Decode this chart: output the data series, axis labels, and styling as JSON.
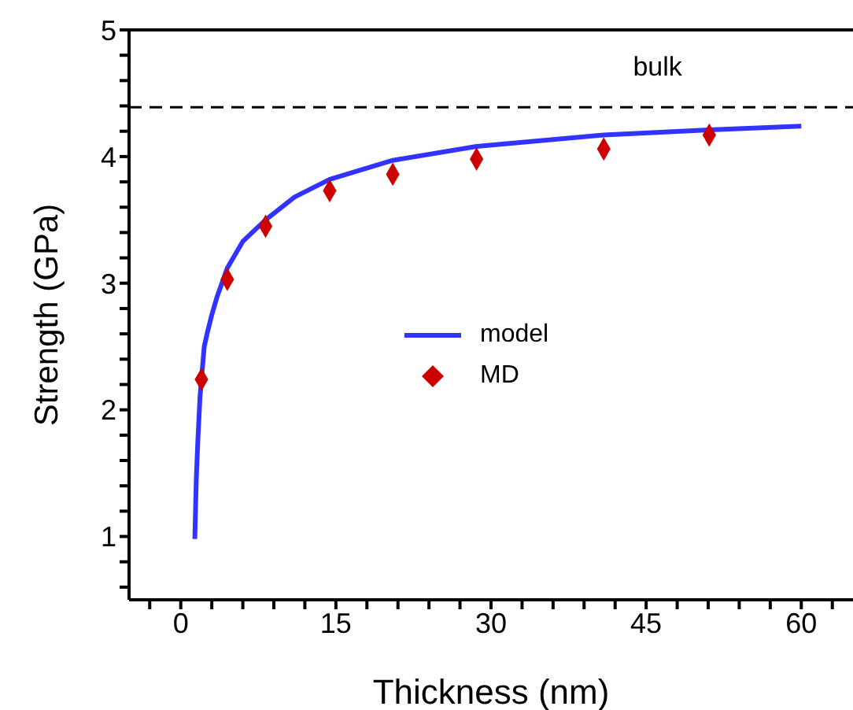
{
  "chart_data": {
    "type": "scatter",
    "xlabel": "Thickness (nm)",
    "ylabel": "Strength (GPa)",
    "xlim": [
      -5,
      65
    ],
    "ylim": [
      0.5,
      5
    ],
    "xticks": [
      {
        "value": -3,
        "label": null
      },
      0,
      {
        "value": 3,
        "label": null
      },
      {
        "value": 6,
        "label": null
      },
      {
        "value": 9,
        "label": null
      },
      {
        "value": 12,
        "label": null
      },
      15,
      {
        "value": 18,
        "label": null
      },
      {
        "value": 21,
        "label": null
      },
      {
        "value": 24,
        "label": null
      },
      {
        "value": 27,
        "label": null
      },
      30,
      {
        "value": 33,
        "label": null
      },
      {
        "value": 36,
        "label": null
      },
      {
        "value": 39,
        "label": null
      },
      {
        "value": 42,
        "label": null
      },
      45,
      {
        "value": 48,
        "label": null
      },
      {
        "value": 51,
        "label": null
      },
      {
        "value": 54,
        "label": null
      },
      {
        "value": 57,
        "label": null
      },
      60,
      {
        "value": 63,
        "label": null
      }
    ],
    "yticks": [
      {
        "value": 0.6,
        "label": null
      },
      {
        "value": 0.8,
        "label": null
      },
      1,
      {
        "value": 1.2,
        "label": null
      },
      {
        "value": 1.4,
        "label": null
      },
      {
        "value": 1.6,
        "label": null
      },
      {
        "value": 1.8,
        "label": null
      },
      2,
      {
        "value": 2.2,
        "label": null
      },
      {
        "value": 2.4,
        "label": null
      },
      {
        "value": 2.6,
        "label": null
      },
      {
        "value": 2.8,
        "label": null
      },
      3,
      {
        "value": 3.2,
        "label": null
      },
      {
        "value": 3.4,
        "label": null
      },
      {
        "value": 3.6,
        "label": null
      },
      {
        "value": 3.8,
        "label": null
      },
      4,
      {
        "value": 4.2,
        "label": null
      },
      {
        "value": 4.4,
        "label": null
      },
      {
        "value": 4.6,
        "label": null
      },
      {
        "value": 4.8,
        "label": null
      },
      5
    ],
    "series": [
      {
        "name": "model",
        "type": "line",
        "color": "#3333ff",
        "marker": "none",
        "x": [
          1.36,
          1.5,
          1.66,
          1.86,
          2.0,
          2.27,
          2.6,
          3.0,
          3.5,
          4.5,
          6,
          8.2,
          11,
          14.4,
          20.5,
          28.6,
          40.9,
          51.1,
          60
        ],
        "values": [
          0.98,
          1.45,
          1.77,
          2.1,
          2.24,
          2.5,
          2.62,
          2.75,
          2.89,
          3.12,
          3.33,
          3.5,
          3.68,
          3.82,
          3.97,
          4.08,
          4.17,
          4.21,
          4.24
        ]
      },
      {
        "name": "MD",
        "color": "#cc0000",
        "marker": "diamond",
        "x": [
          2.0,
          4.5,
          8.2,
          14.4,
          20.5,
          28.6,
          40.9,
          51.1
        ],
        "values": [
          2.24,
          3.03,
          3.45,
          3.73,
          3.86,
          3.98,
          4.06,
          4.17
        ]
      }
    ],
    "ref_lines": [
      {
        "axis": "y",
        "value": 4.39,
        "label": "bulk",
        "color": "#000000",
        "line_style": "dashed"
      }
    ],
    "legend": "center"
  }
}
